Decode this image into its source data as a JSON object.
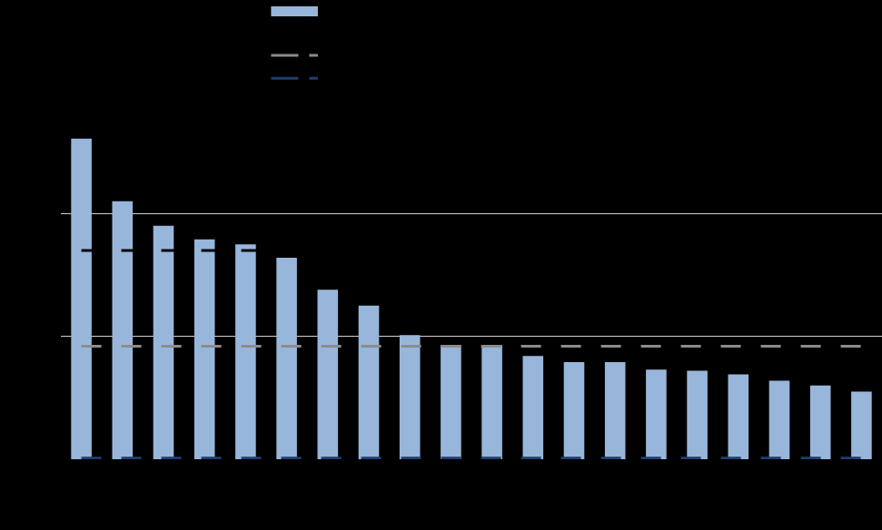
{
  "chart_data": {
    "type": "bar",
    "categories": [
      null,
      null,
      null,
      null,
      null,
      null,
      null,
      null,
      null,
      null,
      null,
      null,
      null,
      null,
      null,
      null,
      null,
      null,
      null,
      null
    ],
    "series": [
      {
        "type": "bar",
        "color": "#98b6da",
        "values": [
          2.61,
          2.1,
          1.9,
          1.79,
          1.75,
          1.64,
          1.38,
          1.25,
          1.01,
          0.93,
          0.93,
          0.84,
          0.79,
          0.79,
          0.73,
          0.72,
          0.69,
          0.64,
          0.6,
          0.55
        ]
      },
      {
        "type": "line",
        "color": "#000000",
        "line_style": "dashed",
        "values": [
          1.7,
          1.7,
          1.7,
          1.7,
          1.7,
          1.7,
          1.7,
          1.7,
          1.7,
          1.7,
          1.7,
          1.7,
          1.7,
          1.7,
          1.7,
          1.7,
          1.7,
          1.7,
          1.7,
          1.7
        ]
      },
      {
        "type": "line",
        "color": "#8c8c8c",
        "line_style": "dashed",
        "values": [
          0.92,
          0.92,
          0.92,
          0.92,
          0.92,
          0.92,
          0.92,
          0.92,
          0.92,
          0.92,
          0.92,
          0.92,
          0.92,
          0.92,
          0.92,
          0.92,
          0.92,
          0.92,
          0.92,
          0.92
        ]
      },
      {
        "type": "line",
        "color": "#1f3d6e",
        "line_style": "dashed",
        "values": [
          0.01,
          0.01,
          0.01,
          0.01,
          0.01,
          0.01,
          0.01,
          0.01,
          0.01,
          0.01,
          0.01,
          0.01,
          0.01,
          0.01,
          0.01,
          0.01,
          0.01,
          0.01,
          0.01,
          0.01
        ]
      }
    ],
    "ylim": [
      0,
      3
    ],
    "yticks": [
      0,
      1,
      2,
      3
    ],
    "grid": true,
    "tick_labels": false
  }
}
